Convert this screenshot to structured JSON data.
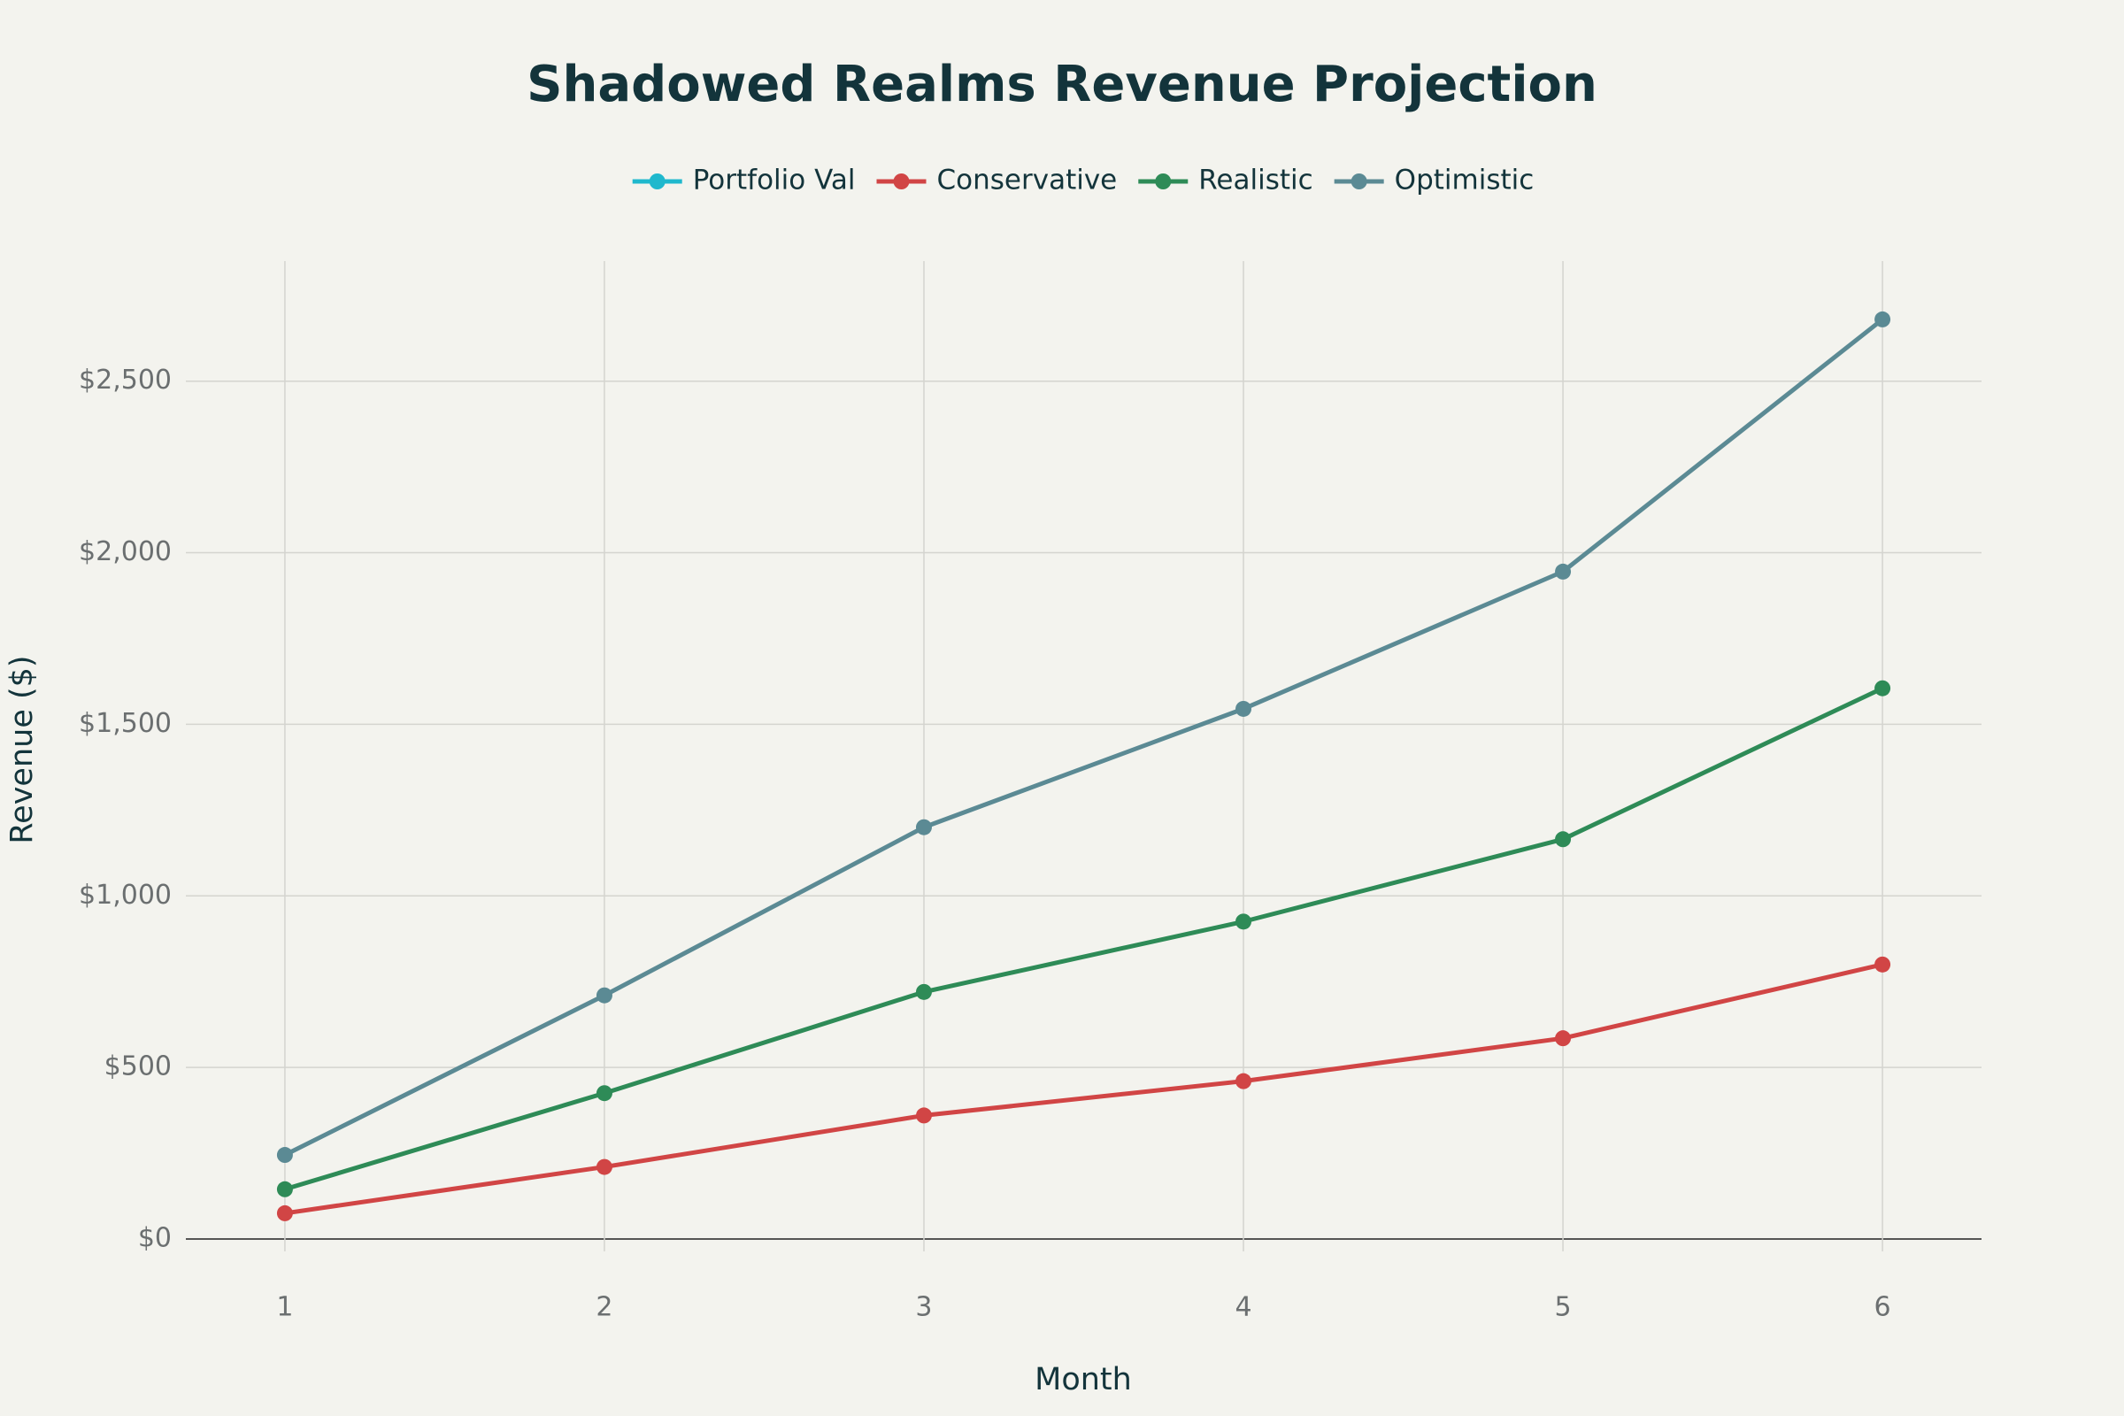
{
  "chart_data": {
    "type": "line",
    "title": "Shadowed Realms Revenue Projection",
    "x_label": "Month",
    "y_label": "Revenue ($)",
    "x": [
      1,
      2,
      3,
      4,
      5,
      6
    ],
    "series": [
      {
        "name": "Portfolio Val",
        "color": "#1fb8cd",
        "values": [
          null,
          null,
          null,
          null,
          null,
          null
        ]
      },
      {
        "name": "Conservative",
        "color": "#d14545",
        "values": [
          75,
          210,
          360,
          460,
          585,
          800
        ]
      },
      {
        "name": "Realistic",
        "color": "#2e8b57",
        "values": [
          145,
          425,
          720,
          925,
          1165,
          1605
        ]
      },
      {
        "name": "Optimistic",
        "color": "#5b8a94",
        "values": [
          245,
          710,
          1200,
          1545,
          1945,
          2680
        ]
      }
    ],
    "xlim": [
      0.69,
      6.31
    ],
    "ylim": [
      0,
      2850
    ],
    "xticks": [
      1,
      2,
      3,
      4,
      5,
      6
    ],
    "yticks": [
      {
        "value": 0,
        "label": "$0"
      },
      {
        "value": 500,
        "label": "$500"
      },
      {
        "value": 1000,
        "label": "$1,000"
      },
      {
        "value": 1500,
        "label": "$1,500"
      },
      {
        "value": 2000,
        "label": "$2,000"
      },
      {
        "value": 2500,
        "label": "$2,500"
      }
    ],
    "grid": true,
    "legend": "top"
  }
}
